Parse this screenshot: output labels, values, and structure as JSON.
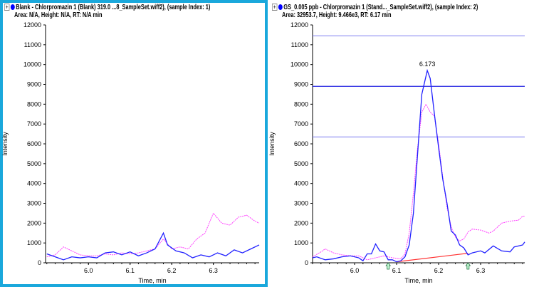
{
  "colors": {
    "blue": "#2020ff",
    "pink": "#ff40ff",
    "baseline": "#ff3030",
    "threshold_dark": "#2020e0",
    "threshold_light": "#8080f0",
    "selected_border": "#1aa8dc"
  },
  "panels": [
    {
      "title": "Blank - Chlorpromazin 1 (Blank) 319.0 ...8_SampleSet.wiff2), (sample Index: 1)",
      "info": "Area: N/A, Height: N/A, RT: N/A min",
      "selected": true,
      "chart_data": {
        "type": "line",
        "xlabel": "Time, min",
        "ylabel": "Intensity",
        "xlim": [
          5.897,
          6.41
        ],
        "ylim": [
          0,
          12000
        ],
        "yticks": [
          "0",
          "1000",
          "2000",
          "3000",
          "4000",
          "5000",
          "6000",
          "7000",
          "8000",
          "9000",
          "10000",
          "11000",
          "12000"
        ],
        "xticks": [
          "6.0",
          "6.1",
          "6.2",
          "6.3"
        ],
        "series": [
          {
            "name": "quantifier",
            "color": "blue",
            "points": [
              [
                5.9,
                450
              ],
              [
                5.92,
                300
              ],
              [
                5.94,
                150
              ],
              [
                5.96,
                300
              ],
              [
                5.98,
                250
              ],
              [
                6.0,
                300
              ],
              [
                6.02,
                250
              ],
              [
                6.04,
                500
              ],
              [
                6.06,
                550
              ],
              [
                6.08,
                400
              ],
              [
                6.1,
                550
              ],
              [
                6.12,
                350
              ],
              [
                6.14,
                500
              ],
              [
                6.16,
                700
              ],
              [
                6.175,
                1300
              ],
              [
                6.18,
                1500
              ],
              [
                6.19,
                900
              ],
              [
                6.21,
                600
              ],
              [
                6.23,
                500
              ],
              [
                6.25,
                250
              ],
              [
                6.27,
                400
              ],
              [
                6.29,
                300
              ],
              [
                6.31,
                500
              ],
              [
                6.33,
                350
              ],
              [
                6.35,
                650
              ],
              [
                6.37,
                500
              ],
              [
                6.39,
                700
              ],
              [
                6.41,
                900
              ]
            ]
          },
          {
            "name": "qualifier",
            "color": "pink",
            "points": [
              [
                5.9,
                300
              ],
              [
                5.92,
                400
              ],
              [
                5.94,
                800
              ],
              [
                5.96,
                600
              ],
              [
                5.98,
                400
              ],
              [
                6.0,
                350
              ],
              [
                6.02,
                350
              ],
              [
                6.04,
                450
              ],
              [
                6.06,
                400
              ],
              [
                6.08,
                500
              ],
              [
                6.1,
                450
              ],
              [
                6.12,
                500
              ],
              [
                6.14,
                600
              ],
              [
                6.16,
                700
              ],
              [
                6.18,
                1200
              ],
              [
                6.2,
                700
              ],
              [
                6.22,
                800
              ],
              [
                6.24,
                700
              ],
              [
                6.26,
                1200
              ],
              [
                6.28,
                1500
              ],
              [
                6.3,
                2500
              ],
              [
                6.32,
                2000
              ],
              [
                6.34,
                1900
              ],
              [
                6.36,
                2300
              ],
              [
                6.38,
                2400
              ],
              [
                6.4,
                2100
              ],
              [
                6.41,
                2000
              ]
            ]
          }
        ]
      }
    },
    {
      "title": "GS_0.005 ppb - Chlorpromazin 1 (Stand..._SampleSet.wiff2), (sample Index: 2)",
      "info": "Area: 32953.7, Height: 9.466e3, RT: 6.17 min",
      "selected": false,
      "chart_data": {
        "type": "line",
        "xlabel": "Time, min",
        "ylabel": "Intensity",
        "xlim": [
          5.9,
          6.405
        ],
        "ylim": [
          0,
          12000
        ],
        "yticks": [
          "0",
          "1000",
          "2000",
          "3000",
          "4000",
          "5000",
          "6000",
          "7000",
          "8000",
          "9000",
          "10000",
          "11000",
          "12000"
        ],
        "xticks": [
          "6.0",
          "6.1",
          "6.2",
          "6.3"
        ],
        "peak_label": {
          "text": "6.173",
          "x": 6.173,
          "y": 9700
        },
        "thresholds": [
          {
            "y": 11450,
            "style": "light"
          },
          {
            "y": 8900,
            "style": "dark"
          },
          {
            "y": 6350,
            "style": "light"
          }
        ],
        "baseline": [
          [
            6.1,
            50
          ],
          [
            6.27,
            480
          ]
        ],
        "markers": [
          6.08,
          6.27
        ],
        "series": [
          {
            "name": "quantifier",
            "color": "blue",
            "points": [
              [
                5.9,
                250
              ],
              [
                5.91,
                300
              ],
              [
                5.93,
                150
              ],
              [
                5.95,
                200
              ],
              [
                5.97,
                300
              ],
              [
                5.99,
                350
              ],
              [
                6.01,
                250
              ],
              [
                6.02,
                100
              ],
              [
                6.03,
                450
              ],
              [
                6.04,
                450
              ],
              [
                6.05,
                950
              ],
              [
                6.06,
                600
              ],
              [
                6.07,
                550
              ],
              [
                6.08,
                150
              ],
              [
                6.09,
                150
              ],
              [
                6.1,
                50
              ],
              [
                6.11,
                100
              ],
              [
                6.12,
                300
              ],
              [
                6.13,
                900
              ],
              [
                6.14,
                2500
              ],
              [
                6.15,
                5500
              ],
              [
                6.16,
                8500
              ],
              [
                6.173,
                9700
              ],
              [
                6.18,
                9300
              ],
              [
                6.19,
                7500
              ],
              [
                6.2,
                5800
              ],
              [
                6.21,
                4200
              ],
              [
                6.22,
                3000
              ],
              [
                6.23,
                1600
              ],
              [
                6.24,
                1400
              ],
              [
                6.25,
                900
              ],
              [
                6.26,
                750
              ],
              [
                6.27,
                400
              ],
              [
                6.28,
                500
              ],
              [
                6.3,
                600
              ],
              [
                6.31,
                500
              ],
              [
                6.33,
                850
              ],
              [
                6.35,
                600
              ],
              [
                6.37,
                550
              ],
              [
                6.38,
                800
              ],
              [
                6.4,
                900
              ],
              [
                6.405,
                1050
              ]
            ]
          },
          {
            "name": "qualifier",
            "color": "pink",
            "points": [
              [
                5.9,
                300
              ],
              [
                5.92,
                550
              ],
              [
                5.93,
                700
              ],
              [
                5.95,
                500
              ],
              [
                5.97,
                400
              ],
              [
                5.99,
                350
              ],
              [
                6.01,
                350
              ],
              [
                6.03,
                150
              ],
              [
                6.05,
                250
              ],
              [
                6.07,
                350
              ],
              [
                6.09,
                250
              ],
              [
                6.11,
                200
              ],
              [
                6.12,
                450
              ],
              [
                6.13,
                1500
              ],
              [
                6.14,
                3500
              ],
              [
                6.15,
                5800
              ],
              [
                6.16,
                7600
              ],
              [
                6.17,
                8000
              ],
              [
                6.18,
                7600
              ],
              [
                6.19,
                7400
              ],
              [
                6.2,
                6000
              ],
              [
                6.21,
                4300
              ],
              [
                6.22,
                2800
              ],
              [
                6.23,
                1800
              ],
              [
                6.24,
                1300
              ],
              [
                6.25,
                1100
              ],
              [
                6.26,
                1200
              ],
              [
                6.27,
                1550
              ],
              [
                6.28,
                1700
              ],
              [
                6.3,
                1650
              ],
              [
                6.32,
                1500
              ],
              [
                6.33,
                1600
              ],
              [
                6.35,
                2000
              ],
              [
                6.37,
                2100
              ],
              [
                6.39,
                2150
              ],
              [
                6.4,
                2350
              ],
              [
                6.405,
                2350
              ]
            ]
          }
        ]
      }
    }
  ]
}
